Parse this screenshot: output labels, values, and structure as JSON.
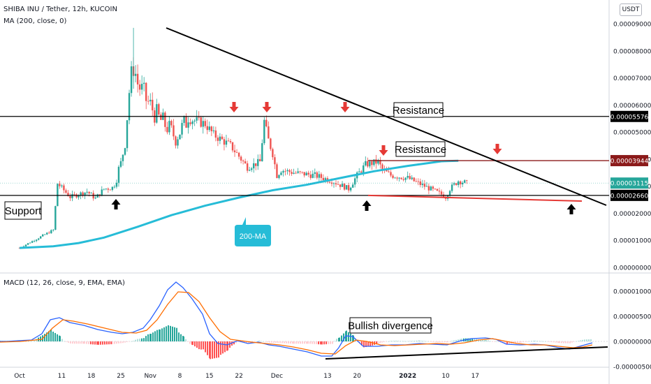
{
  "header": {
    "symbol_line": "SHIBA INU / Tether, 12h, KUCOIN",
    "ma_line": "MA (200, close, 0)",
    "macd_line": "MACD (12, 26, close, 9, EMA, EMA)",
    "currency_button": "USDT"
  },
  "colors": {
    "up": "#26a69a",
    "down": "#ef5350",
    "ma": "#26bcd7",
    "macd_line": "#2962ff",
    "signal_line": "#ff6d00",
    "hist_up_strong": "#26a69a",
    "hist_up_weak": "#b2dfdb",
    "hist_down_strong": "#ff5252",
    "hist_down_weak": "#ffcdd2",
    "annotation_red": "#e53935"
  },
  "chart_data": [
    {
      "type": "candlestick",
      "title": "SHIBA INU / Tether, 12h, KUCOIN",
      "y_axis": {
        "ylim": [
          0,
          9.5e-06
        ],
        "tick_labels": [
          "0.00009000",
          "0.00008000",
          "0.00007000",
          "0.00006000",
          "0.00005000",
          "0.00004000",
          "0.00003000",
          "0.00002000",
          "0.00001000",
          "0.00000000"
        ],
        "tick_values": [
          9e-05,
          8e-05,
          7e-05,
          6e-05,
          5e-05,
          4e-05,
          3e-05,
          2e-05,
          1e-05,
          0
        ]
      },
      "x_axis": {
        "tick_labels": [
          "Oct",
          "11",
          "18",
          "25",
          "Nov",
          "8",
          "15",
          "22",
          "Dec",
          "13",
          "20",
          "2022",
          "10",
          "17"
        ],
        "tick_day_index": [
          0,
          10,
          17,
          24,
          31,
          38,
          45,
          52,
          61,
          73,
          80,
          92,
          101,
          108
        ]
      },
      "close_series": {
        "day_index": [
          0,
          8,
          9,
          12,
          16,
          18,
          20,
          22,
          24,
          25,
          26,
          27,
          28,
          30,
          33,
          35,
          37,
          40,
          44,
          46,
          50,
          54,
          57,
          58,
          59,
          60,
          61,
          62,
          65,
          70,
          74,
          78,
          80,
          82,
          85,
          86,
          88,
          92,
          96,
          100,
          101,
          102,
          104,
          106
        ],
        "values": [
          7.2e-06,
          1.38e-05,
          3.1e-05,
          2.6e-05,
          2.8e-05,
          2.55e-05,
          2.9e-05,
          2.95e-05,
          3.8e-05,
          4.7e-05,
          6.5e-05,
          7.5e-05,
          6.8e-05,
          6.2e-05,
          5.5e-05,
          5.2e-05,
          4.8e-05,
          5.5e-05,
          5.3e-05,
          4.9e-05,
          4.5e-05,
          3.7e-05,
          3.9e-05,
          5.4e-05,
          4.7e-05,
          4.2e-05,
          3.4e-05,
          3.6e-05,
          3.5e-05,
          3.4e-05,
          3.2e-05,
          2.9e-05,
          3.4e-05,
          3.8e-05,
          3.9e-05,
          3.6e-05,
          3.4e-05,
          3.3e-05,
          3e-05,
          2.7e-05,
          2.6e-05,
          2.9e-05,
          3.2e-05,
          3.115e-05
        ]
      },
      "ma_series": {
        "name": "MA (200, close, 0)",
        "day_index": [
          0,
          8,
          14,
          20,
          28,
          36,
          44,
          52,
          60,
          68,
          76,
          84,
          92,
          100,
          104
        ],
        "values": [
          7.2e-06,
          7.8e-06,
          9e-06,
          1.1e-05,
          1.5e-05,
          1.93e-05,
          2.28e-05,
          2.58e-05,
          2.85e-05,
          3.05e-05,
          3.3e-05,
          3.55e-05,
          3.75e-05,
          3.92e-05,
          3.94e-05
        ]
      },
      "price_labels": [
        {
          "text": "0.00005576",
          "value": 5.576e-05,
          "style": "black"
        },
        {
          "text": "0.00003944",
          "value": 3.944e-05,
          "style": "darkred"
        },
        {
          "text": "0.00003115",
          "value": 3.115e-05,
          "style": "teal"
        },
        {
          "text": "0.00002660",
          "value": 2.66e-05,
          "style": "black"
        }
      ],
      "annotations": [
        {
          "text": "Resistance",
          "value": 5.576e-05
        },
        {
          "text": "Resistance",
          "value": 3.944e-05
        },
        {
          "text": "Support",
          "value": 2.66e-05
        },
        {
          "text": "200-MA"
        }
      ],
      "horizontal_lines": [
        {
          "value": 5.576e-05,
          "color": "black"
        },
        {
          "value": 3.944e-05,
          "color": "darkred"
        },
        {
          "value": 2.66e-05,
          "color": "black"
        }
      ]
    },
    {
      "type": "line",
      "title": "MACD (12, 26, close, 9, EMA, EMA)",
      "y_axis": {
        "tick_labels": [
          "0.00001000",
          "0.00000500",
          "0.00000000",
          "-0.00000500"
        ],
        "tick_values": [
          1e-05,
          5e-06,
          0,
          -5e-06
        ]
      },
      "annotation": "Bullish divergence"
    }
  ]
}
